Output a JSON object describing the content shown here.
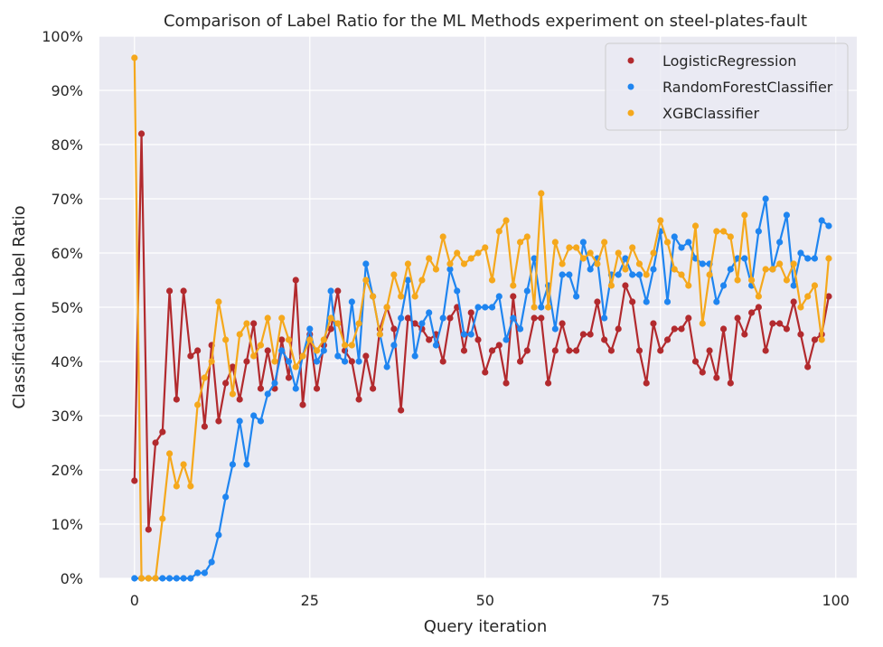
{
  "chart_data": {
    "type": "line",
    "title": "Comparison of Label Ratio for the ML Methods experiment on steel-plates-fault",
    "xlabel": "Query iteration",
    "ylabel": "Classification Label Ratio",
    "xlim": [
      -5,
      103
    ],
    "ylim": [
      0,
      1
    ],
    "xticks": [
      0,
      25,
      50,
      75,
      100
    ],
    "xtick_labels": [
      "0",
      "25",
      "50",
      "75",
      "100"
    ],
    "yticks": [
      0,
      0.1,
      0.2,
      0.3,
      0.4,
      0.5,
      0.6,
      0.7,
      0.8,
      0.9,
      1.0
    ],
    "ytick_labels": [
      "0%",
      "10%",
      "20%",
      "30%",
      "40%",
      "50%",
      "60%",
      "70%",
      "80%",
      "90%",
      "100%"
    ],
    "grid": true,
    "legend_position": "top-right",
    "background": "#eaeaf2",
    "series": [
      {
        "name": "LogisticRegression",
        "color": "#b22a2e",
        "x": [
          0,
          1,
          2,
          3,
          4,
          5,
          6,
          7,
          8,
          9,
          10,
          11,
          12,
          13,
          14,
          15,
          16,
          17,
          18,
          19,
          20,
          21,
          22,
          23,
          24,
          25,
          26,
          27,
          28,
          29,
          30,
          31,
          32,
          33,
          34,
          35,
          36,
          37,
          38,
          39,
          40,
          41,
          42,
          43,
          44,
          45,
          46,
          47,
          48,
          49,
          50,
          51,
          52,
          53,
          54,
          55,
          56,
          57,
          58,
          59,
          60,
          61,
          62,
          63,
          64,
          65,
          66,
          67,
          68,
          69,
          70,
          71,
          72,
          73,
          74,
          75,
          76,
          77,
          78,
          79,
          80,
          81,
          82,
          83,
          84,
          85,
          86,
          87,
          88,
          89,
          90,
          91,
          92,
          93,
          94,
          95,
          96,
          97,
          98,
          99
        ],
        "values": [
          0.18,
          0.82,
          0.09,
          0.25,
          0.27,
          0.53,
          0.33,
          0.53,
          0.41,
          0.42,
          0.28,
          0.43,
          0.29,
          0.36,
          0.39,
          0.33,
          0.4,
          0.47,
          0.35,
          0.42,
          0.35,
          0.44,
          0.37,
          0.55,
          0.32,
          0.45,
          0.35,
          0.43,
          0.46,
          0.53,
          0.42,
          0.4,
          0.33,
          0.41,
          0.35,
          0.46,
          0.5,
          0.46,
          0.31,
          0.48,
          0.47,
          0.46,
          0.44,
          0.45,
          0.4,
          0.48,
          0.5,
          0.42,
          0.49,
          0.44,
          0.38,
          0.42,
          0.43,
          0.36,
          0.52,
          0.4,
          0.42,
          0.48,
          0.48,
          0.36,
          0.42,
          0.47,
          0.42,
          0.42,
          0.45,
          0.45,
          0.51,
          0.44,
          0.42,
          0.46,
          0.54,
          0.51,
          0.42,
          0.36,
          0.47,
          0.42,
          0.44,
          0.46,
          0.46,
          0.48,
          0.4,
          0.38,
          0.42,
          0.37,
          0.46,
          0.36,
          0.48,
          0.45,
          0.49,
          0.5,
          0.42,
          0.47,
          0.47,
          0.46,
          0.51,
          0.45,
          0.39,
          0.44,
          0.45,
          0.52
        ]
      },
      {
        "name": "RandomForestClassifier",
        "color": "#1f85f0",
        "x": [
          0,
          1,
          2,
          3,
          4,
          5,
          6,
          7,
          8,
          9,
          10,
          11,
          12,
          13,
          14,
          15,
          16,
          17,
          18,
          19,
          20,
          21,
          22,
          23,
          24,
          25,
          26,
          27,
          28,
          29,
          30,
          31,
          32,
          33,
          34,
          35,
          36,
          37,
          38,
          39,
          40,
          41,
          42,
          43,
          44,
          45,
          46,
          47,
          48,
          49,
          50,
          51,
          52,
          53,
          54,
          55,
          56,
          57,
          58,
          59,
          60,
          61,
          62,
          63,
          64,
          65,
          66,
          67,
          68,
          69,
          70,
          71,
          72,
          73,
          74,
          75,
          76,
          77,
          78,
          79,
          80,
          81,
          82,
          83,
          84,
          85,
          86,
          87,
          88,
          89,
          90,
          91,
          92,
          93,
          94,
          95,
          96,
          97,
          98,
          99
        ],
        "values": [
          0,
          0,
          0,
          0,
          0,
          0,
          0,
          0,
          0,
          0.01,
          0.01,
          0.03,
          0.08,
          0.15,
          0.21,
          0.29,
          0.21,
          0.3,
          0.29,
          0.34,
          0.36,
          0.42,
          0.4,
          0.35,
          0.41,
          0.46,
          0.4,
          0.42,
          0.53,
          0.41,
          0.4,
          0.51,
          0.4,
          0.58,
          0.52,
          0.45,
          0.39,
          0.43,
          0.48,
          0.55,
          0.41,
          0.47,
          0.49,
          0.43,
          0.48,
          0.57,
          0.53,
          0.45,
          0.45,
          0.5,
          0.5,
          0.5,
          0.52,
          0.44,
          0.48,
          0.46,
          0.53,
          0.59,
          0.5,
          0.54,
          0.46,
          0.56,
          0.56,
          0.52,
          0.62,
          0.57,
          0.59,
          0.48,
          0.56,
          0.56,
          0.59,
          0.56,
          0.56,
          0.51,
          0.57,
          0.64,
          0.51,
          0.63,
          0.61,
          0.62,
          0.59,
          0.58,
          0.58,
          0.51,
          0.54,
          0.57,
          0.59,
          0.59,
          0.54,
          0.64,
          0.7,
          0.57,
          0.62,
          0.67,
          0.54,
          0.6,
          0.59,
          0.59,
          0.66,
          0.65
        ]
      },
      {
        "name": "XGBClassifier",
        "color": "#f5a81c",
        "x": [
          0,
          1,
          2,
          3,
          4,
          5,
          6,
          7,
          8,
          9,
          10,
          11,
          12,
          13,
          14,
          15,
          16,
          17,
          18,
          19,
          20,
          21,
          22,
          23,
          24,
          25,
          26,
          27,
          28,
          29,
          30,
          31,
          32,
          33,
          34,
          35,
          36,
          37,
          38,
          39,
          40,
          41,
          42,
          43,
          44,
          45,
          46,
          47,
          48,
          49,
          50,
          51,
          52,
          53,
          54,
          55,
          56,
          57,
          58,
          59,
          60,
          61,
          62,
          63,
          64,
          65,
          66,
          67,
          68,
          69,
          70,
          71,
          72,
          73,
          74,
          75,
          76,
          77,
          78,
          79,
          80,
          81,
          82,
          83,
          84,
          85,
          86,
          87,
          88,
          89,
          90,
          91,
          92,
          93,
          94,
          95,
          96,
          97,
          98,
          99
        ],
        "values": [
          0.96,
          0,
          0,
          0,
          0.11,
          0.23,
          0.17,
          0.21,
          0.17,
          0.32,
          0.37,
          0.4,
          0.51,
          0.44,
          0.34,
          0.45,
          0.47,
          0.41,
          0.43,
          0.48,
          0.4,
          0.48,
          0.44,
          0.39,
          0.41,
          0.44,
          0.42,
          0.44,
          0.48,
          0.47,
          0.43,
          0.43,
          0.47,
          0.55,
          0.52,
          0.45,
          0.5,
          0.56,
          0.52,
          0.58,
          0.52,
          0.55,
          0.59,
          0.57,
          0.63,
          0.58,
          0.6,
          0.58,
          0.59,
          0.6,
          0.61,
          0.55,
          0.64,
          0.66,
          0.54,
          0.62,
          0.63,
          0.5,
          0.71,
          0.5,
          0.62,
          0.58,
          0.61,
          0.61,
          0.59,
          0.6,
          0.58,
          0.62,
          0.54,
          0.6,
          0.57,
          0.61,
          0.58,
          0.56,
          0.6,
          0.66,
          0.62,
          0.57,
          0.56,
          0.54,
          0.65,
          0.47,
          0.56,
          0.64,
          0.64,
          0.63,
          0.55,
          0.67,
          0.55,
          0.52,
          0.57,
          0.57,
          0.58,
          0.55,
          0.58,
          0.5,
          0.52,
          0.54,
          0.44,
          0.59
        ]
      }
    ]
  }
}
